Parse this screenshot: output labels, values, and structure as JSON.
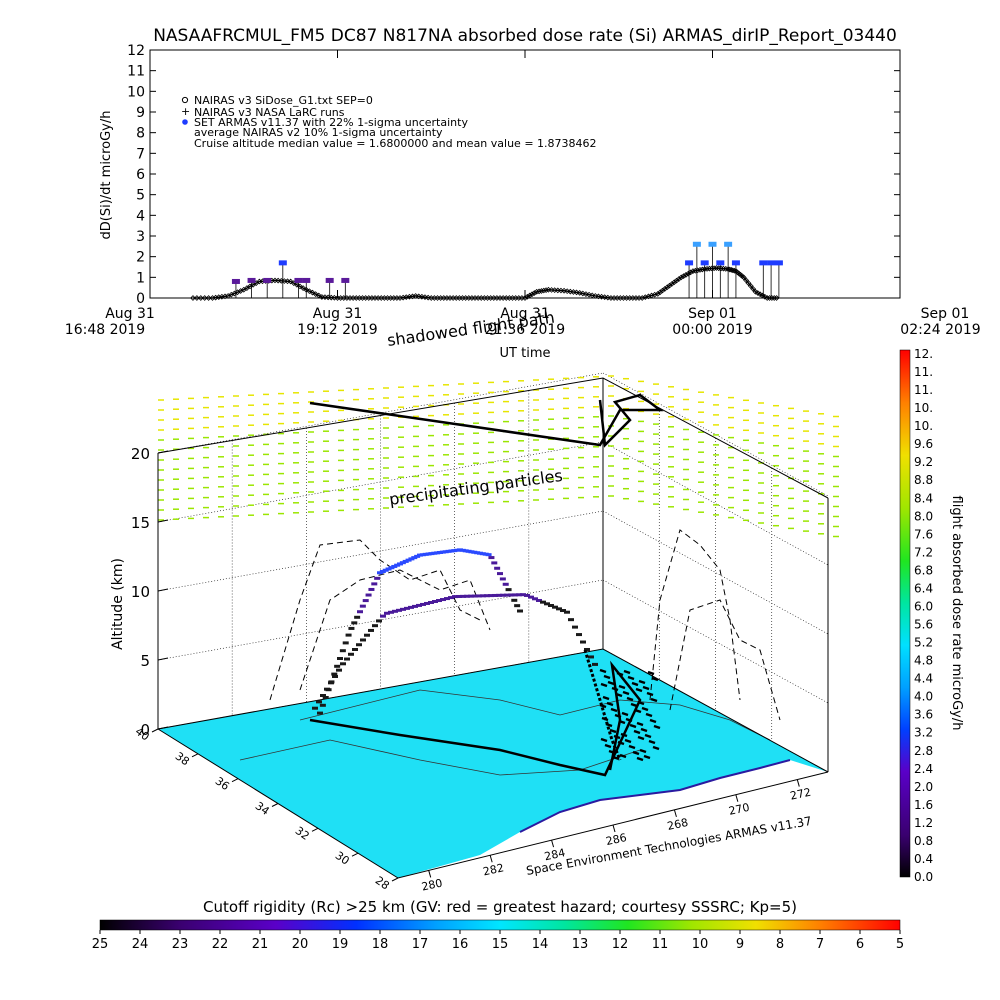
{
  "title": "NASAAFRCMUL_FM5 DC87 N817NA absorbed dose rate (Si) ARMAS_dirIP_Report_03440",
  "colors": {
    "nairas_sidose": "#000000",
    "nairas_larc": "#000000",
    "set_armas": "#1e3cff",
    "nairas_v2": "#3aa0ff",
    "ocean": "#1fe0f5",
    "land": "#ffffff",
    "precip": "#9be600",
    "precip_high": "#e6e600",
    "flight_low": "#1a1a1a",
    "flight_mid": "#4a1a9a",
    "flight_high": "#2a4aff"
  },
  "chart_data": [
    {
      "type": "line",
      "title": "NASAAFRCMUL_FM5 DC87 N817NA absorbed dose rate (Si) ARMAS_dirIP_Report_03440",
      "xlabel": "UT time",
      "ylabel": "dD(Si)/dt microGy/h",
      "ylim": [
        0,
        12
      ],
      "yticks": [
        "0",
        "1",
        "2",
        "3",
        "4",
        "5",
        "6",
        "7",
        "8",
        "9",
        "10",
        "11",
        "12"
      ],
      "xlim_hours": [
        0,
        9.6
      ],
      "xticks": [
        {
          "line1": "Aug 31",
          "line2": "16:48 2019"
        },
        {
          "line1": "Aug 31",
          "line2": "19:12 2019"
        },
        {
          "line1": "Aug 31",
          "line2": "21:36 2019"
        },
        {
          "line1": "Sep 01",
          "line2": "00:00 2019"
        },
        {
          "line1": "Sep 01",
          "line2": "02:24 2019"
        }
      ],
      "legend": [
        "NAIRAS v3 SiDose_G1.txt SEP=0",
        "NAIRAS v3 NASA LaRC runs",
        "SET ARMAS v11.37 with 22% 1-sigma uncertainty",
        "average NAIRAS v2 10% 1-sigma uncertainty",
        "Cruise altitude median value = 1.6800000 and mean value = 1.8738462"
      ],
      "legend_placement": "top-left",
      "series": [
        {
          "name": "NAIRAS v3 SiDose_G1.txt SEP=0",
          "x": [
            0.55,
            0.8,
            1.0,
            1.2,
            1.4,
            1.6,
            1.8,
            2.0,
            2.2,
            2.4,
            2.6,
            2.8,
            3.0,
            3.2,
            3.4,
            3.6,
            3.8,
            4.0,
            4.2,
            4.4,
            4.6,
            4.8,
            4.95,
            5.1,
            5.3,
            5.5,
            5.7,
            5.9,
            6.1,
            6.3,
            6.5,
            6.65,
            6.8,
            6.95,
            7.1,
            7.25,
            7.4,
            7.5,
            7.6,
            7.75,
            7.9,
            8.05
          ],
          "values": [
            0,
            0,
            0.1,
            0.4,
            0.8,
            0.85,
            0.8,
            0.4,
            0.05,
            0,
            0,
            0,
            0,
            0,
            0.1,
            0,
            0,
            0,
            0,
            0,
            0,
            0,
            0.3,
            0.4,
            0.35,
            0.25,
            0.1,
            0,
            0,
            0,
            0.2,
            0.6,
            1.0,
            1.3,
            1.4,
            1.45,
            1.4,
            1.3,
            1.0,
            0.3,
            0,
            0
          ]
        },
        {
          "name": "SET ARMAS v11.37 with 22% 1-sigma uncertainty",
          "x": [
            1.1,
            1.3,
            1.5,
            1.7,
            1.9,
            2.0,
            2.3,
            2.5,
            6.9,
            7.0,
            7.1,
            7.2,
            7.3,
            7.4,
            7.5,
            7.85,
            7.95,
            8.05
          ],
          "values": [
            0.8,
            0.85,
            0.85,
            1.7,
            0.85,
            0.85,
            0.85,
            0.85,
            1.7,
            2.6,
            1.7,
            2.6,
            1.7,
            2.6,
            1.7,
            1.7,
            1.7,
            1.7
          ]
        }
      ]
    },
    {
      "type": "scatter",
      "subtitle": "Space Environment Technologies ARMAS v11.37",
      "zlabel": "Altitude (km)",
      "zticks": [
        "0",
        "5",
        "10",
        "15",
        "20"
      ],
      "lat_ticks": [
        "40",
        "38",
        "36",
        "34",
        "32",
        "30",
        "28"
      ],
      "lon_ticks": [
        "280",
        "282",
        "284",
        "286",
        "268",
        "270",
        "272"
      ],
      "annotations": [
        "shadowed flight path",
        "precipitating particles"
      ],
      "colorbar": {
        "label": "flight absorbed dose rate microGy/h",
        "ticks": [
          "12.",
          "11.",
          "11.",
          "10.",
          "10.",
          "9.6",
          "9.2",
          "8.8",
          "8.4",
          "8.0",
          "7.6",
          "7.2",
          "6.8",
          "6.4",
          "6.0",
          "5.6",
          "5.2",
          "4.8",
          "4.4",
          "4.0",
          "3.6",
          "3.2",
          "2.8",
          "2.4",
          "2.0",
          "1.6",
          "1.2",
          "0.8",
          "0.4",
          "0.0"
        ]
      },
      "flight_profile_1": {
        "t": [
          0,
          0.15,
          0.3,
          0.5,
          0.7,
          0.85,
          1.0
        ],
        "altitude_km": [
          0.5,
          6,
          9.8,
          10.5,
          10.3,
          9.5,
          5
        ]
      },
      "flight_profile_2": {
        "t": [
          0,
          0.1,
          0.25,
          0.5,
          0.75,
          0.9,
          1.0
        ],
        "altitude_km": [
          1,
          4,
          7.3,
          8.0,
          7.6,
          6,
          2
        ]
      }
    }
  ],
  "rigidity_bar": {
    "label": "Cutoff rigidity (Rc) >25 km (GV: red = greatest hazard; courtesy SSSRC; Kp=5)",
    "ticks": [
      "25",
      "24",
      "23",
      "22",
      "21",
      "20",
      "19",
      "18",
      "17",
      "16",
      "15",
      "14",
      "13",
      "12",
      "11",
      "10",
      "9",
      "8",
      "7",
      "6",
      "5"
    ]
  }
}
